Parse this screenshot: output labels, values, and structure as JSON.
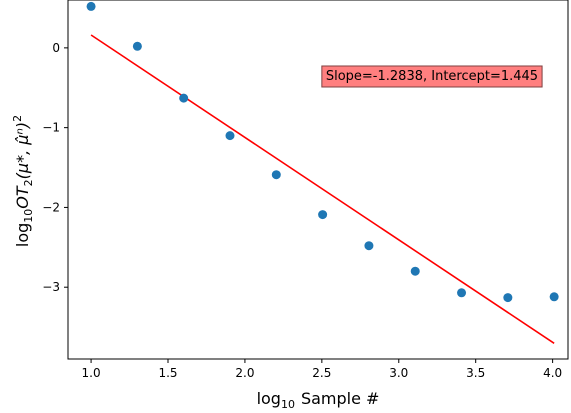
{
  "chart_data": {
    "type": "scatter",
    "title": "",
    "xlabel_prefix": "log",
    "xlabel_sub": "10",
    "xlabel_rest": "Sample #",
    "ylabel_prefix": "log",
    "ylabel_sub": "10",
    "ylabel_rest": "OT",
    "ylabel_sub2": "2",
    "ylabel_args": "(μ*, μ̂ⁿ)",
    "ylabel_pow": "2",
    "xlim": [
      0.85,
      4.1
    ],
    "ylim": [
      -3.9,
      0.6
    ],
    "xticks": [
      1.0,
      1.5,
      2.0,
      2.5,
      3.0,
      3.5,
      4.0
    ],
    "xtick_labels": [
      "1.0",
      "1.5",
      "2.0",
      "2.5",
      "3.0",
      "3.5",
      "4.0"
    ],
    "yticks": [
      0,
      -1,
      -2,
      -3
    ],
    "ytick_labels": [
      "0",
      "−1",
      "−2",
      "−3"
    ],
    "grid": false,
    "points": {
      "x": [
        1.0,
        1.301,
        1.602,
        1.903,
        2.204,
        2.505,
        2.806,
        3.107,
        3.408,
        3.709,
        4.01
      ],
      "y": [
        0.52,
        0.02,
        -0.63,
        -1.1,
        -1.59,
        -2.09,
        -2.48,
        -2.8,
        -3.07,
        -3.13,
        -3.12
      ],
      "color": "#1f77b4"
    },
    "fit": {
      "slope": -1.2838,
      "intercept": 1.445,
      "x_range": [
        1.0,
        4.01
      ],
      "color": "#ff0000"
    },
    "annotation": {
      "text": "Slope=-1.2838, Intercept=1.445",
      "anchor_x": 2.5,
      "anchor_y": -0.34,
      "facecolor": "#ff7f7f",
      "edgecolor": "#7f4040"
    }
  }
}
